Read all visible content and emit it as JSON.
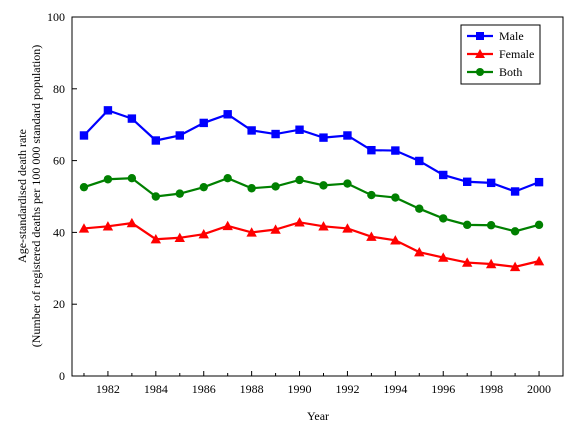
{
  "chart_data": {
    "type": "line",
    "xlabel": "Year",
    "ylabel_line1": "Age-standardised death rate",
    "ylabel_line2": "(Number of registered deaths per 100 000 standard population)",
    "ylim": [
      0,
      100
    ],
    "xlim": [
      1980.5,
      2001
    ],
    "y_ticks": [
      0,
      20,
      40,
      60,
      80,
      100
    ],
    "x_ticks": [
      1982,
      1984,
      1986,
      1988,
      1990,
      1992,
      1994,
      1996,
      1998,
      2000
    ],
    "grid": false,
    "legend_position": "top-right",
    "x": [
      1981,
      1982,
      1983,
      1984,
      1985,
      1986,
      1987,
      1988,
      1989,
      1990,
      1991,
      1992,
      1993,
      1994,
      1995,
      1996,
      1997,
      1998,
      1999,
      2000
    ],
    "series": [
      {
        "name": "Male",
        "color": "#0000ff",
        "marker": "square",
        "values": [
          67.0,
          74.0,
          71.7,
          65.6,
          67.0,
          70.5,
          72.9,
          68.4,
          67.4,
          68.6,
          66.4,
          67.0,
          62.9,
          62.8,
          59.9,
          56.0,
          54.1,
          53.8,
          51.4,
          54.0
        ]
      },
      {
        "name": "Female",
        "color": "#ff0000",
        "marker": "triangle",
        "values": [
          41.1,
          41.7,
          42.6,
          38.1,
          38.5,
          39.5,
          41.8,
          40.0,
          40.8,
          42.8,
          41.7,
          41.1,
          38.8,
          37.8,
          34.5,
          33.0,
          31.6,
          31.2,
          30.4,
          32.0
        ]
      },
      {
        "name": "Both",
        "color": "#008000",
        "marker": "circle",
        "values": [
          52.6,
          54.8,
          55.1,
          50.0,
          50.8,
          52.6,
          55.1,
          52.3,
          52.8,
          54.6,
          53.1,
          53.6,
          50.4,
          49.7,
          46.6,
          43.9,
          42.1,
          42.0,
          40.3,
          42.1
        ]
      }
    ]
  }
}
